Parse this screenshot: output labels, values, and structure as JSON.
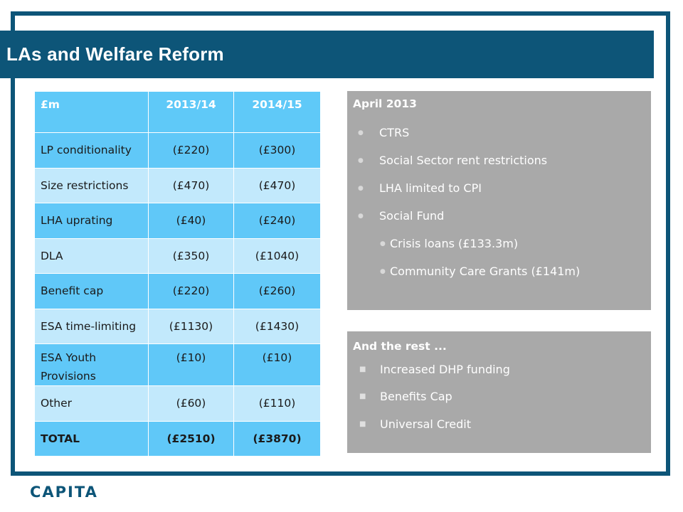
{
  "slide": {
    "title": "LAs and Welfare Reform",
    "logo_text": "CAPITA",
    "colors": {
      "frame": "#0d5578",
      "title_bar": "#0d5578",
      "table_header": "#5fc9f8",
      "row_dark": "#60c8f8",
      "row_light": "#c2e9fc",
      "panel": "#a9a9a9"
    }
  },
  "table": {
    "headers": [
      "£m",
      "2013/14",
      "2014/15"
    ],
    "rows": [
      {
        "label": "LP conditionality",
        "y1": "(£220)",
        "y2": "(£300)"
      },
      {
        "label": "Size restrictions",
        "y1": "(£470)",
        "y2": "(£470)"
      },
      {
        "label": "LHA uprating",
        "y1": "(£40)",
        "y2": "(£240)"
      },
      {
        "label": "DLA",
        "y1": "(£350)",
        "y2": "(£1040)"
      },
      {
        "label": "Benefit  cap",
        "y1": "(£220)",
        "y2": "(£260)"
      },
      {
        "label": "ESA time-limiting",
        "y1": "(£1130)",
        "y2": "(£1430)"
      },
      {
        "label": "ESA Youth Provisions",
        "y1": "(£10)",
        "y2": "(£10)"
      },
      {
        "label": "Other",
        "y1": "(£60)",
        "y2": "(£110)"
      },
      {
        "label": "TOTAL",
        "y1": "(£2510)",
        "y2": "(£3870)"
      }
    ]
  },
  "panel_top": {
    "heading": "April 2013",
    "items": [
      {
        "text": "CTRS"
      },
      {
        "text": "Social Sector rent restrictions"
      },
      {
        "text": "LHA limited to CPI"
      },
      {
        "text": "Social Fund"
      },
      {
        "text": "Crisis loans (£133.3m)"
      },
      {
        "text": "Community Care Grants (£141m)"
      }
    ],
    "bullet_icon": "dot-bullet-icon"
  },
  "panel_bottom": {
    "heading": "And the rest ...",
    "items": [
      {
        "text": "Increased DHP funding"
      },
      {
        "text": "Benefits Cap"
      },
      {
        "text": "Universal Credit"
      }
    ],
    "bullet_icon": "square-bullet-icon"
  }
}
